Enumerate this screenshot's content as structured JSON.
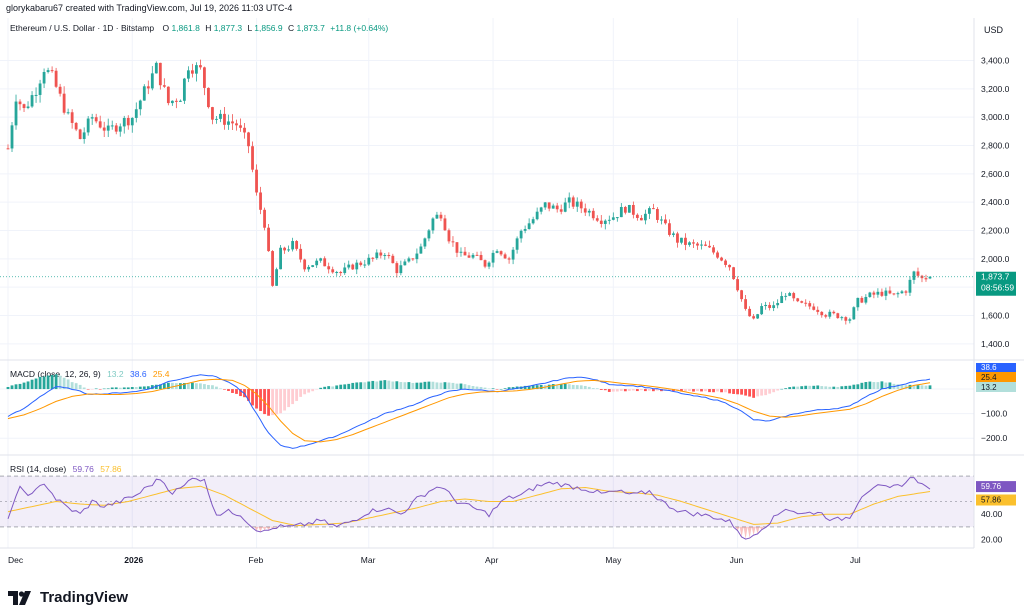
{
  "credit": "glorykabaru67 created with TradingView.com, Jul 19, 2026 11:03 UTC-4",
  "brand": "TradingView",
  "currency": "USD",
  "colors": {
    "up": "#26a69a",
    "down": "#ef5350",
    "macd": "#2962ff",
    "signal": "#ff9800",
    "rsi": "#7e57c2",
    "rsi_ma": "#fbc02d"
  },
  "chart_data": [
    {
      "type": "candlestick",
      "symbol_line": "Ethereum / U.S. Dollar · 1D · Bitstamp",
      "ohlc_text": {
        "o_label": "O",
        "o": "1,861.8",
        "h_label": "H",
        "h": "1,877.3",
        "l_label": "L",
        "l": "1,856.9",
        "c_label": "C",
        "c": "1,873.7",
        "change": "+11.8 (+0.64%)"
      },
      "ylim": [
        1300,
        3700
      ],
      "y_ticks": [
        1400,
        1600,
        1800,
        2000,
        2200,
        2400,
        2600,
        2800,
        3000,
        3200,
        3400
      ],
      "y_tick_labels": [
        "1,400.0",
        "1,600.0",
        "1,800.0",
        "2,000.0",
        "2,200.0",
        "2,400.0",
        "2,600.0",
        "2,800.0",
        "3,000.0",
        "3,200.0",
        "3,400.0"
      ],
      "last_price": 1873.7,
      "last_price_label": "1,873.7",
      "countdown": "08:56:59",
      "x_labels": [
        {
          "day": 0,
          "text": "Dec"
        },
        {
          "day": 31,
          "text": "2026"
        },
        {
          "day": 62,
          "text": "Feb"
        },
        {
          "day": 90,
          "text": "Mar"
        },
        {
          "day": 121,
          "text": "Apr"
        },
        {
          "day": 151,
          "text": "May"
        },
        {
          "day": 182,
          "text": "Jun"
        },
        {
          "day": 212,
          "text": "Jul"
        }
      ],
      "anchors": [
        [
          0,
          2780
        ],
        [
          2,
          3150
        ],
        [
          4,
          3050
        ],
        [
          7,
          3200
        ],
        [
          9,
          3350
        ],
        [
          11,
          3280
        ],
        [
          15,
          3000
        ],
        [
          18,
          2850
        ],
        [
          21,
          3000
        ],
        [
          25,
          2900
        ],
        [
          28,
          2960
        ],
        [
          31,
          3000
        ],
        [
          34,
          3180
        ],
        [
          37,
          3350
        ],
        [
          40,
          3100
        ],
        [
          43,
          3150
        ],
        [
          45,
          3370
        ],
        [
          48,
          3330
        ],
        [
          51,
          3000
        ],
        [
          54,
          2980
        ],
        [
          57,
          2950
        ],
        [
          60,
          2800
        ],
        [
          62,
          2450
        ],
        [
          64,
          2250
        ],
        [
          66,
          1800
        ],
        [
          68,
          2050
        ],
        [
          71,
          2100
        ],
        [
          74,
          1950
        ],
        [
          78,
          1980
        ],
        [
          83,
          1900
        ],
        [
          86,
          1950
        ],
        [
          89,
          1980
        ],
        [
          91,
          2000
        ],
        [
          94,
          2050
        ],
        [
          97,
          1920
        ],
        [
          100,
          1980
        ],
        [
          103,
          2080
        ],
        [
          106,
          2280
        ],
        [
          108,
          2320
        ],
        [
          110,
          2150
        ],
        [
          113,
          2020
        ],
        [
          116,
          2020
        ],
        [
          119,
          1960
        ],
        [
          122,
          2080
        ],
        [
          125,
          2000
        ],
        [
          128,
          2200
        ],
        [
          131,
          2280
        ],
        [
          134,
          2380
        ],
        [
          137,
          2350
        ],
        [
          140,
          2400
        ],
        [
          144,
          2350
        ],
        [
          148,
          2280
        ],
        [
          151,
          2300
        ],
        [
          154,
          2360
        ],
        [
          158,
          2300
        ],
        [
          161,
          2340
        ],
        [
          164,
          2220
        ],
        [
          167,
          2130
        ],
        [
          170,
          2100
        ],
        [
          174,
          2080
        ],
        [
          177,
          2030
        ],
        [
          180,
          1950
        ],
        [
          182,
          1800
        ],
        [
          184,
          1630
        ],
        [
          186,
          1560
        ],
        [
          188,
          1660
        ],
        [
          191,
          1660
        ],
        [
          194,
          1760
        ],
        [
          197,
          1680
        ],
        [
          201,
          1660
        ],
        [
          204,
          1610
        ],
        [
          207,
          1600
        ],
        [
          210,
          1580
        ],
        [
          212,
          1700
        ],
        [
          215,
          1740
        ],
        [
          218,
          1760
        ],
        [
          221,
          1740
        ],
        [
          224,
          1780
        ],
        [
          226,
          1900
        ],
        [
          228,
          1860
        ],
        [
          230,
          1873.7
        ]
      ]
    },
    {
      "type": "line",
      "name": "MACD",
      "label": "MACD (close, 12, 26, 9)",
      "values_text": {
        "hist": "13.2",
        "macd": "38.6",
        "signal": "25.4"
      },
      "ylim": [
        -260,
        110
      ],
      "y_ticks": [
        -200,
        -100
      ],
      "y_tick_labels": [
        "−200.0",
        "−100.0"
      ],
      "macd_anchors": [
        [
          0,
          -110
        ],
        [
          4,
          -80
        ],
        [
          8,
          -30
        ],
        [
          12,
          10
        ],
        [
          16,
          0
        ],
        [
          20,
          -20
        ],
        [
          24,
          -20
        ],
        [
          28,
          -15
        ],
        [
          32,
          -10
        ],
        [
          36,
          5
        ],
        [
          40,
          30
        ],
        [
          44,
          45
        ],
        [
          48,
          60
        ],
        [
          52,
          50
        ],
        [
          56,
          20
        ],
        [
          59,
          -20
        ],
        [
          62,
          -100
        ],
        [
          65,
          -180
        ],
        [
          68,
          -230
        ],
        [
          71,
          -240
        ],
        [
          74,
          -230
        ],
        [
          78,
          -210
        ],
        [
          82,
          -190
        ],
        [
          86,
          -160
        ],
        [
          90,
          -130
        ],
        [
          94,
          -100
        ],
        [
          98,
          -80
        ],
        [
          102,
          -60
        ],
        [
          106,
          -30
        ],
        [
          110,
          -10
        ],
        [
          114,
          0
        ],
        [
          118,
          -5
        ],
        [
          122,
          -10
        ],
        [
          126,
          0
        ],
        [
          130,
          10
        ],
        [
          134,
          25
        ],
        [
          138,
          40
        ],
        [
          142,
          50
        ],
        [
          146,
          40
        ],
        [
          150,
          20
        ],
        [
          154,
          15
        ],
        [
          158,
          10
        ],
        [
          162,
          0
        ],
        [
          166,
          -10
        ],
        [
          170,
          -25
        ],
        [
          174,
          -35
        ],
        [
          178,
          -50
        ],
        [
          182,
          -80
        ],
        [
          186,
          -125
        ],
        [
          190,
          -130
        ],
        [
          194,
          -110
        ],
        [
          198,
          -95
        ],
        [
          202,
          -85
        ],
        [
          206,
          -80
        ],
        [
          210,
          -70
        ],
        [
          214,
          -30
        ],
        [
          218,
          0
        ],
        [
          222,
          15
        ],
        [
          226,
          30
        ],
        [
          230,
          38.6
        ]
      ],
      "signal_anchors": [
        [
          0,
          -120
        ],
        [
          4,
          -105
        ],
        [
          8,
          -80
        ],
        [
          12,
          -50
        ],
        [
          16,
          -30
        ],
        [
          20,
          -20
        ],
        [
          24,
          -22
        ],
        [
          28,
          -22
        ],
        [
          32,
          -18
        ],
        [
          36,
          -10
        ],
        [
          40,
          5
        ],
        [
          44,
          20
        ],
        [
          48,
          35
        ],
        [
          52,
          40
        ],
        [
          56,
          35
        ],
        [
          59,
          15
        ],
        [
          62,
          -20
        ],
        [
          65,
          -70
        ],
        [
          68,
          -130
        ],
        [
          71,
          -180
        ],
        [
          74,
          -210
        ],
        [
          78,
          -215
        ],
        [
          82,
          -205
        ],
        [
          86,
          -185
        ],
        [
          90,
          -160
        ],
        [
          94,
          -135
        ],
        [
          98,
          -110
        ],
        [
          102,
          -85
        ],
        [
          106,
          -60
        ],
        [
          110,
          -35
        ],
        [
          114,
          -20
        ],
        [
          118,
          -12
        ],
        [
          122,
          -10
        ],
        [
          126,
          -8
        ],
        [
          130,
          -2
        ],
        [
          134,
          8
        ],
        [
          138,
          20
        ],
        [
          142,
          32
        ],
        [
          146,
          35
        ],
        [
          150,
          30
        ],
        [
          154,
          22
        ],
        [
          158,
          16
        ],
        [
          162,
          8
        ],
        [
          166,
          -2
        ],
        [
          170,
          -15
        ],
        [
          174,
          -25
        ],
        [
          178,
          -38
        ],
        [
          182,
          -60
        ],
        [
          186,
          -90
        ],
        [
          190,
          -110
        ],
        [
          194,
          -115
        ],
        [
          198,
          -108
        ],
        [
          202,
          -98
        ],
        [
          206,
          -90
        ],
        [
          210,
          -82
        ],
        [
          214,
          -60
        ],
        [
          218,
          -30
        ],
        [
          222,
          -5
        ],
        [
          226,
          15
        ],
        [
          230,
          25.4
        ]
      ]
    },
    {
      "type": "line",
      "name": "RSI",
      "label": "RSI (14, close)",
      "values_text": {
        "rsi": "59.76",
        "ma": "57.86"
      },
      "ylim": [
        15,
        85
      ],
      "y_ticks": [
        20,
        40
      ],
      "y_tick_labels": [
        "20.00",
        "40.00"
      ],
      "band": [
        30,
        70
      ],
      "mid": 50,
      "rsi_anchors": [
        [
          0,
          38
        ],
        [
          3,
          60
        ],
        [
          6,
          55
        ],
        [
          9,
          65
        ],
        [
          12,
          52
        ],
        [
          15,
          45
        ],
        [
          18,
          40
        ],
        [
          21,
          50
        ],
        [
          24,
          46
        ],
        [
          28,
          50
        ],
        [
          32,
          55
        ],
        [
          35,
          62
        ],
        [
          38,
          68
        ],
        [
          41,
          57
        ],
        [
          44,
          62
        ],
        [
          46,
          70
        ],
        [
          49,
          66
        ],
        [
          52,
          40
        ],
        [
          55,
          42
        ],
        [
          58,
          40
        ],
        [
          61,
          30
        ],
        [
          64,
          26
        ],
        [
          67,
          30
        ],
        [
          71,
          30
        ],
        [
          74,
          32
        ],
        [
          78,
          35
        ],
        [
          82,
          30
        ],
        [
          86,
          35
        ],
        [
          90,
          42
        ],
        [
          94,
          45
        ],
        [
          98,
          40
        ],
        [
          102,
          52
        ],
        [
          106,
          60
        ],
        [
          108,
          62
        ],
        [
          112,
          50
        ],
        [
          116,
          45
        ],
        [
          120,
          40
        ],
        [
          124,
          52
        ],
        [
          128,
          55
        ],
        [
          132,
          62
        ],
        [
          136,
          65
        ],
        [
          140,
          62
        ],
        [
          144,
          60
        ],
        [
          148,
          56
        ],
        [
          152,
          58
        ],
        [
          156,
          55
        ],
        [
          160,
          58
        ],
        [
          164,
          48
        ],
        [
          168,
          42
        ],
        [
          172,
          40
        ],
        [
          176,
          38
        ],
        [
          180,
          34
        ],
        [
          182,
          28
        ],
        [
          184,
          19
        ],
        [
          186,
          24
        ],
        [
          190,
          34
        ],
        [
          194,
          45
        ],
        [
          198,
          40
        ],
        [
          202,
          42
        ],
        [
          206,
          35
        ],
        [
          210,
          38
        ],
        [
          213,
          55
        ],
        [
          216,
          62
        ],
        [
          220,
          60
        ],
        [
          224,
          65
        ],
        [
          226,
          70
        ],
        [
          228,
          63
        ],
        [
          230,
          59.76
        ]
      ],
      "ma_anchors": [
        [
          0,
          42
        ],
        [
          6,
          46
        ],
        [
          12,
          50
        ],
        [
          18,
          48
        ],
        [
          24,
          47
        ],
        [
          30,
          50
        ],
        [
          36,
          55
        ],
        [
          42,
          60
        ],
        [
          48,
          62
        ],
        [
          54,
          55
        ],
        [
          60,
          45
        ],
        [
          66,
          35
        ],
        [
          72,
          31
        ],
        [
          78,
          32
        ],
        [
          84,
          33
        ],
        [
          90,
          37
        ],
        [
          96,
          41
        ],
        [
          102,
          45
        ],
        [
          108,
          50
        ],
        [
          114,
          52
        ],
        [
          120,
          50
        ],
        [
          126,
          50
        ],
        [
          132,
          55
        ],
        [
          138,
          60
        ],
        [
          144,
          61
        ],
        [
          150,
          58
        ],
        [
          156,
          57
        ],
        [
          162,
          55
        ],
        [
          168,
          50
        ],
        [
          174,
          44
        ],
        [
          180,
          38
        ],
        [
          186,
          32
        ],
        [
          192,
          33
        ],
        [
          198,
          38
        ],
        [
          204,
          40
        ],
        [
          210,
          40
        ],
        [
          216,
          48
        ],
        [
          222,
          54
        ],
        [
          230,
          57.86
        ]
      ]
    }
  ]
}
